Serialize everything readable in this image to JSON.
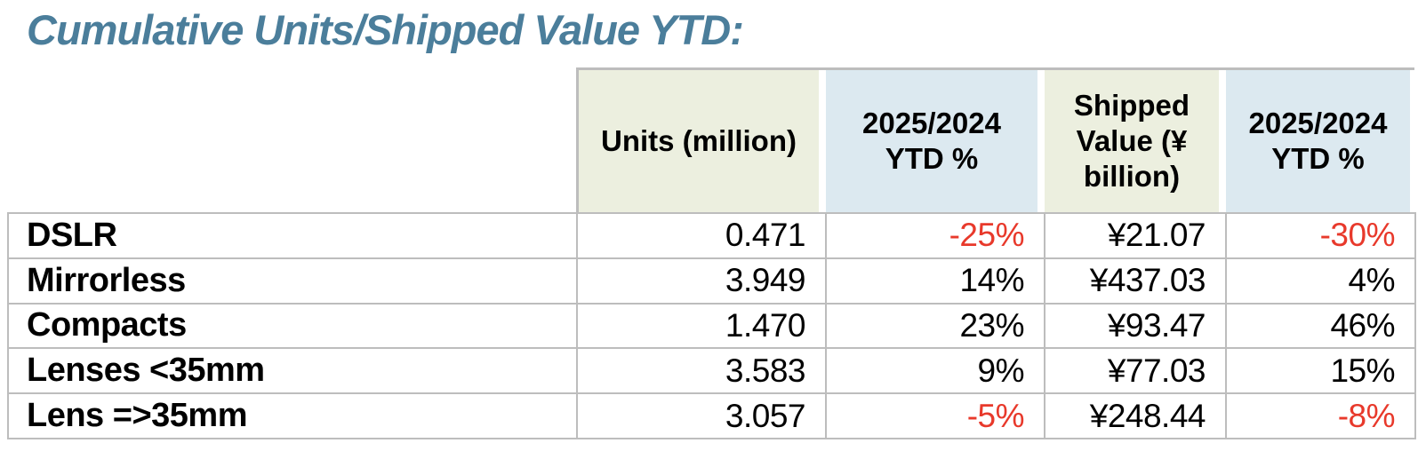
{
  "title": "Cumulative Units/Shipped Value YTD:",
  "colors": {
    "title_text": "#4b7e9b",
    "header_fill_green": "#ecefdf",
    "header_fill_blue": "#dce9f0",
    "negative_value": "#e8392b",
    "grid_border": "#bdbdbd",
    "body_text": "#000000"
  },
  "table": {
    "header": {
      "row_label_column": "",
      "columns": [
        {
          "label": "Units (million)",
          "fill": "green"
        },
        {
          "label": "2025/2024 YTD %",
          "fill": "blue"
        },
        {
          "label": "Shipped Value (¥ billion)",
          "fill": "green"
        },
        {
          "label": "2025/2024 YTD %",
          "fill": "blue"
        }
      ]
    },
    "rows": [
      {
        "label": "DSLR",
        "units_million": "0.471",
        "units_ytd_pct": "-25%",
        "shipped_value": "¥21.07",
        "value_ytd_pct": "-30%"
      },
      {
        "label": "Mirrorless",
        "units_million": "3.949",
        "units_ytd_pct": "14%",
        "shipped_value": "¥437.03",
        "value_ytd_pct": "4%"
      },
      {
        "label": "Compacts",
        "units_million": "1.470",
        "units_ytd_pct": "23%",
        "shipped_value": "¥93.47",
        "value_ytd_pct": "46%"
      },
      {
        "label": "Lenses <35mm",
        "units_million": "3.583",
        "units_ytd_pct": "9%",
        "shipped_value": "¥77.03",
        "value_ytd_pct": "15%"
      },
      {
        "label": "Lens =>35mm",
        "units_million": "3.057",
        "units_ytd_pct": "-5%",
        "shipped_value": "¥248.44",
        "value_ytd_pct": "-8%"
      }
    ]
  },
  "chart_data": {
    "type": "table",
    "title": "Cumulative Units/Shipped Value YTD",
    "categories": [
      "DSLR",
      "Mirrorless",
      "Compacts",
      "Lenses <35mm",
      "Lens =>35mm"
    ],
    "series": [
      {
        "name": "Units (million)",
        "values": [
          0.471,
          3.949,
          1.47,
          3.583,
          3.057
        ]
      },
      {
        "name": "Units 2025/2024 YTD %",
        "values": [
          -25,
          14,
          23,
          9,
          -5
        ]
      },
      {
        "name": "Shipped Value (¥ billion)",
        "values": [
          21.07,
          437.03,
          93.47,
          77.03,
          248.44
        ]
      },
      {
        "name": "Value 2025/2024 YTD %",
        "values": [
          -30,
          4,
          46,
          15,
          -8
        ]
      }
    ]
  }
}
